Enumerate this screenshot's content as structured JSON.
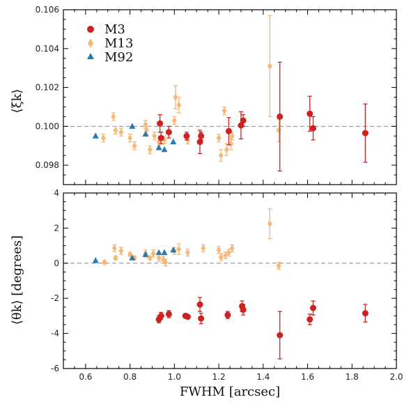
{
  "colors": {
    "M3": "#cc2222",
    "M13": "#f7b877",
    "M92": "#2a7ab0",
    "refline": "#888888",
    "axis": "#000000"
  },
  "chart_data": [
    {
      "type": "scatter",
      "panel": "top",
      "xlabel": "",
      "ylabel": "⟨ξk⟩",
      "xlim": [
        0.5,
        2.0
      ],
      "ylim": [
        0.097,
        0.106
      ],
      "yticks": [
        "0.098",
        "0.100",
        "0.102",
        "0.104",
        "0.106"
      ],
      "yticks_values": [
        0.098,
        0.1,
        0.102,
        0.104,
        0.106
      ],
      "reference_line": 0.1,
      "legend": {
        "position": "top-left",
        "entries": [
          "M3",
          "M13",
          "M92"
        ]
      },
      "series": [
        {
          "name": "M3",
          "marker": "circle",
          "points": [
            {
              "x": 0.935,
              "y": 0.10015,
              "err": 0.00045
            },
            {
              "x": 0.94,
              "y": 0.0994,
              "err": 0.0003
            },
            {
              "x": 0.975,
              "y": 0.0997,
              "err": 0.0003
            },
            {
              "x": 1.055,
              "y": 0.0995,
              "err": 0.0002
            },
            {
              "x": 1.115,
              "y": 0.0992,
              "err": 0.0006
            },
            {
              "x": 1.12,
              "y": 0.0995,
              "err": 0.0002
            },
            {
              "x": 1.245,
              "y": 0.09975,
              "err": 0.0007
            },
            {
              "x": 1.3,
              "y": 0.10005,
              "err": 0.0007
            },
            {
              "x": 1.31,
              "y": 0.1003,
              "err": 0.0003
            },
            {
              "x": 1.475,
              "y": 0.1005,
              "err": 0.0028
            },
            {
              "x": 1.61,
              "y": 0.10065,
              "err": 0.0009
            },
            {
              "x": 1.625,
              "y": 0.0999,
              "err": 0.0006
            },
            {
              "x": 1.86,
              "y": 0.09965,
              "err": 0.0015
            }
          ]
        },
        {
          "name": "M13",
          "marker": "diamond",
          "points": [
            {
              "x": 0.68,
              "y": 0.0994,
              "err": 0.0002
            },
            {
              "x": 0.725,
              "y": 0.1005,
              "err": 0.0002
            },
            {
              "x": 0.735,
              "y": 0.0998,
              "err": 0.0002
            },
            {
              "x": 0.76,
              "y": 0.0997,
              "err": 0.0002
            },
            {
              "x": 0.8,
              "y": 0.0994,
              "err": 0.0002
            },
            {
              "x": 0.82,
              "y": 0.099,
              "err": 0.0002
            },
            {
              "x": 0.87,
              "y": 0.1001,
              "err": 0.0002
            },
            {
              "x": 0.875,
              "y": 0.0998,
              "err": 0.0002
            },
            {
              "x": 0.89,
              "y": 0.0988,
              "err": 0.0002
            },
            {
              "x": 0.91,
              "y": 0.0995,
              "err": 0.0002
            },
            {
              "x": 0.93,
              "y": 0.0992,
              "err": 0.0002
            },
            {
              "x": 0.955,
              "y": 0.0993,
              "err": 0.0002
            },
            {
              "x": 1.0,
              "y": 0.1003,
              "err": 0.0002
            },
            {
              "x": 1.005,
              "y": 0.1015,
              "err": 0.0006
            },
            {
              "x": 1.02,
              "y": 0.1011,
              "err": 0.0004
            },
            {
              "x": 1.06,
              "y": 0.0993,
              "err": 0.0002
            },
            {
              "x": 1.2,
              "y": 0.0994,
              "err": 0.0002
            },
            {
              "x": 1.21,
              "y": 0.0985,
              "err": 0.0003
            },
            {
              "x": 1.225,
              "y": 0.1008,
              "err": 0.0002
            },
            {
              "x": 1.235,
              "y": 0.0988,
              "err": 0.0003
            },
            {
              "x": 1.255,
              "y": 0.0991,
              "err": 0.0003
            },
            {
              "x": 1.26,
              "y": 0.0995,
              "err": 0.0002
            },
            {
              "x": 1.43,
              "y": 0.1031,
              "err": 0.0026
            },
            {
              "x": 1.47,
              "y": 0.0998,
              "err": 0.0006
            }
          ]
        },
        {
          "name": "M92",
          "marker": "triangle",
          "points": [
            {
              "x": 0.645,
              "y": 0.0995,
              "err": 0
            },
            {
              "x": 0.81,
              "y": 0.1,
              "err": 0
            },
            {
              "x": 0.87,
              "y": 0.0996,
              "err": 0
            },
            {
              "x": 0.93,
              "y": 0.0989,
              "err": 0
            },
            {
              "x": 0.955,
              "y": 0.0988,
              "err": 0
            },
            {
              "x": 0.995,
              "y": 0.0992,
              "err": 0
            }
          ]
        }
      ]
    },
    {
      "type": "scatter",
      "panel": "bottom",
      "xlabel": "FWHM [arcsec]",
      "ylabel": "⟨θk⟩ [degrees]",
      "xlim": [
        0.5,
        2.0
      ],
      "ylim": [
        -6,
        4
      ],
      "xticks": [
        "0.6",
        "0.8",
        "1.0",
        "1.2",
        "1.4",
        "1.6",
        "1.8",
        "2.0"
      ],
      "xticks_values": [
        0.6,
        0.8,
        1.0,
        1.2,
        1.4,
        1.6,
        1.8,
        2.0
      ],
      "yticks": [
        "-6",
        "-4",
        "-2",
        "0",
        "2",
        "4"
      ],
      "yticks_values": [
        -6,
        -4,
        -2,
        0,
        2,
        4
      ],
      "reference_line": 0,
      "series": [
        {
          "name": "M3",
          "marker": "circle",
          "points": [
            {
              "x": 0.93,
              "y": -3.2,
              "err": 0.2
            },
            {
              "x": 0.94,
              "y": -3.0,
              "err": 0.2
            },
            {
              "x": 0.975,
              "y": -2.9,
              "err": 0.2
            },
            {
              "x": 1.05,
              "y": -3.0,
              "err": 0.1
            },
            {
              "x": 1.06,
              "y": -3.05,
              "err": 0.1
            },
            {
              "x": 1.115,
              "y": -2.35,
              "err": 0.4
            },
            {
              "x": 1.12,
              "y": -3.15,
              "err": 0.3
            },
            {
              "x": 1.24,
              "y": -2.95,
              "err": 0.2
            },
            {
              "x": 1.305,
              "y": -2.45,
              "err": 0.3
            },
            {
              "x": 1.31,
              "y": -2.65,
              "err": 0.3
            },
            {
              "x": 1.475,
              "y": -4.1,
              "err": 1.35
            },
            {
              "x": 1.61,
              "y": -3.2,
              "err": 0.3
            },
            {
              "x": 1.625,
              "y": -2.55,
              "err": 0.4
            },
            {
              "x": 1.86,
              "y": -2.85,
              "err": 0.5
            }
          ]
        },
        {
          "name": "M13",
          "marker": "diamond",
          "points": [
            {
              "x": 0.685,
              "y": 0.05,
              "err": 0.1
            },
            {
              "x": 0.73,
              "y": 0.85,
              "err": 0.2
            },
            {
              "x": 0.735,
              "y": 0.3,
              "err": 0.1
            },
            {
              "x": 0.76,
              "y": 0.7,
              "err": 0.2
            },
            {
              "x": 0.8,
              "y": 0.5,
              "err": 0.1
            },
            {
              "x": 0.82,
              "y": 0.3,
              "err": 0.1
            },
            {
              "x": 0.87,
              "y": 0.55,
              "err": 0.2
            },
            {
              "x": 0.89,
              "y": 0.3,
              "err": 0.1
            },
            {
              "x": 0.905,
              "y": 0.55,
              "err": 0.2
            },
            {
              "x": 0.93,
              "y": 0.3,
              "err": 0.2
            },
            {
              "x": 0.95,
              "y": 0.2,
              "err": 0.2
            },
            {
              "x": 0.96,
              "y": 0.05,
              "err": 0.2
            },
            {
              "x": 1.0,
              "y": 0.7,
              "err": 0.2
            },
            {
              "x": 1.02,
              "y": 0.8,
              "err": 0.3
            },
            {
              "x": 1.06,
              "y": 0.6,
              "err": 0.2
            },
            {
              "x": 1.13,
              "y": 0.85,
              "err": 0.2
            },
            {
              "x": 1.2,
              "y": 0.75,
              "err": 0.2
            },
            {
              "x": 1.21,
              "y": 0.35,
              "err": 0.2
            },
            {
              "x": 1.23,
              "y": 0.45,
              "err": 0.2
            },
            {
              "x": 1.245,
              "y": 0.6,
              "err": 0.2
            },
            {
              "x": 1.26,
              "y": 0.85,
              "err": 0.2
            },
            {
              "x": 1.43,
              "y": 2.25,
              "err": 0.85
            },
            {
              "x": 1.47,
              "y": -0.15,
              "err": 0.2
            }
          ]
        },
        {
          "name": "M92",
          "marker": "triangle",
          "points": [
            {
              "x": 0.645,
              "y": 0.15,
              "err": 0
            },
            {
              "x": 0.81,
              "y": 0.3,
              "err": 0
            },
            {
              "x": 0.87,
              "y": 0.5,
              "err": 0
            },
            {
              "x": 0.93,
              "y": 0.6,
              "err": 0
            },
            {
              "x": 0.955,
              "y": 0.6,
              "err": 0
            },
            {
              "x": 0.995,
              "y": 0.75,
              "err": 0
            }
          ]
        }
      ]
    }
  ]
}
